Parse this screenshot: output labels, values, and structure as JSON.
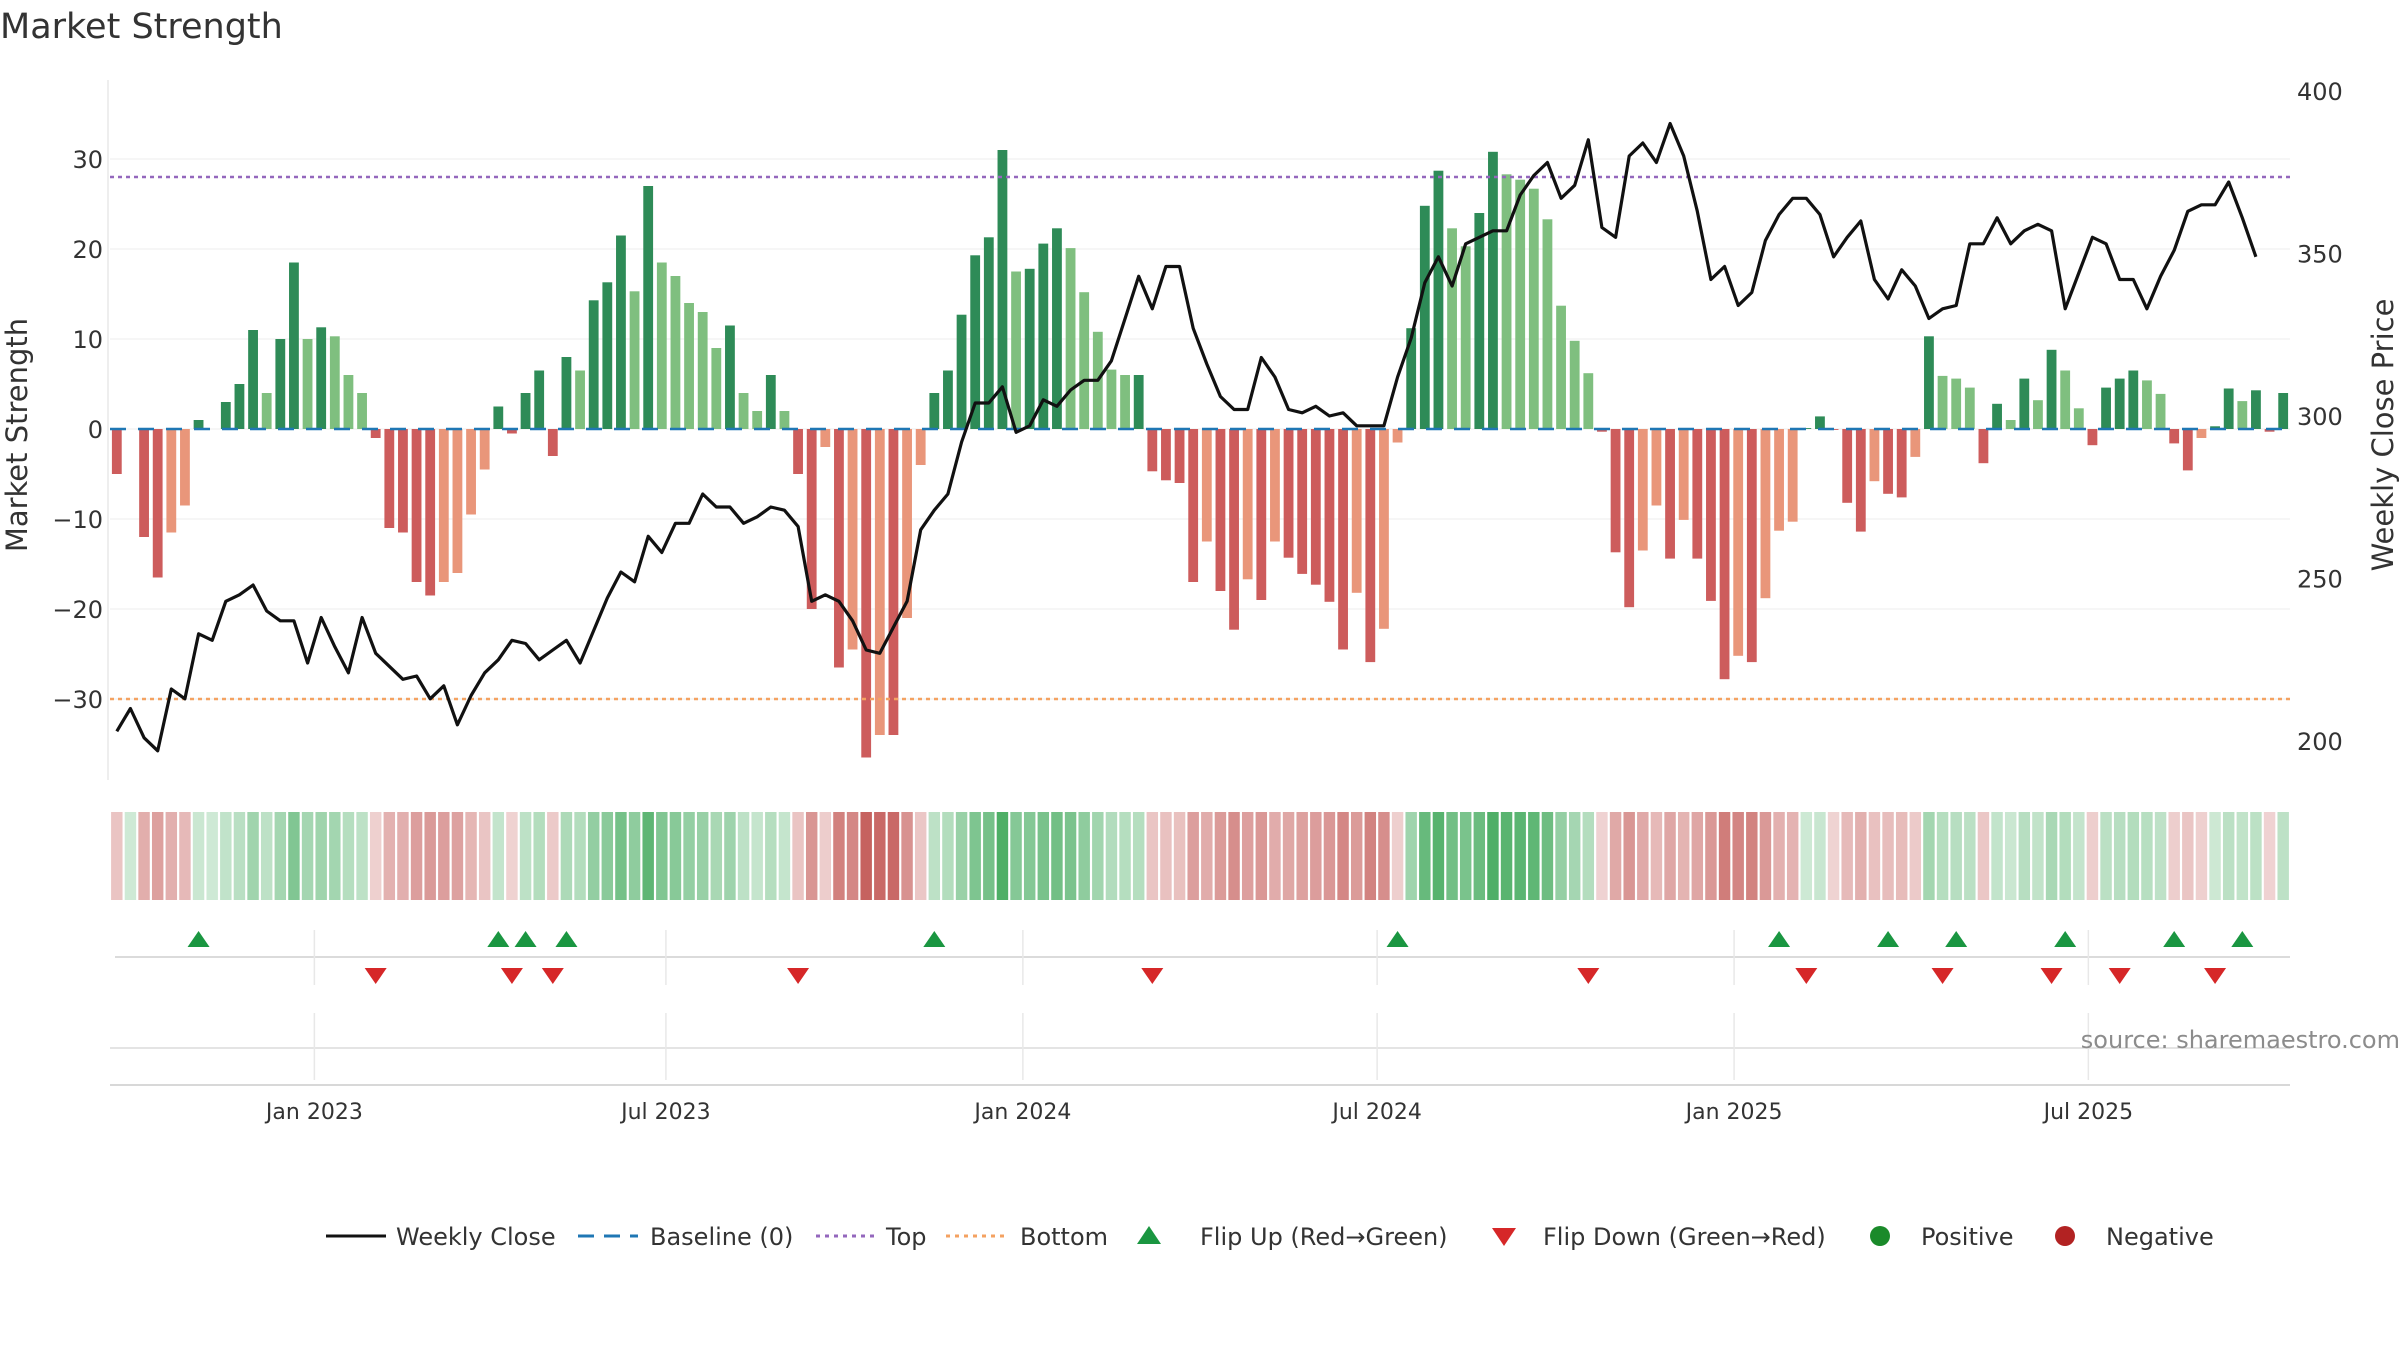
{
  "chart_data": {
    "type": "bar",
    "title": "Market Strength",
    "ylabel": "Market Strength",
    "y2label": "Weekly Close Price",
    "ylim": [
      -39,
      39
    ],
    "y2lim": [
      188,
      404
    ],
    "yticks": [
      30,
      20,
      10,
      0,
      -10,
      -20,
      -30
    ],
    "yticklabels": [
      "30",
      "20",
      "10",
      "0",
      "−10",
      "−20",
      "−30"
    ],
    "y2ticks": [
      400,
      350,
      300,
      250,
      200
    ],
    "y2ticklabels": [
      "400",
      "350",
      "300",
      "250",
      "200"
    ],
    "thresholds": {
      "top": 28,
      "bottom": -30,
      "baseline": 0
    },
    "xdates": [
      "Jan 2023",
      "Jul 2023",
      "Jan 2024",
      "Jul 2024",
      "Jan 2025",
      "Jul 2025"
    ],
    "xdate_index": [
      14.5,
      40.3,
      66.5,
      92.5,
      118.7,
      144.7
    ],
    "strength": [
      -5,
      0,
      -12,
      -16.5,
      -11.5,
      -8.5,
      1,
      0,
      3,
      5,
      11,
      4,
      10,
      18.5,
      10,
      11.3,
      10.3,
      6,
      4,
      -1,
      -11,
      -11.5,
      -17,
      -18.5,
      -17,
      -16,
      -9.5,
      -4.5,
      2.5,
      -0.5,
      4,
      6.5,
      -3,
      8,
      6.5,
      14.3,
      16.3,
      21.5,
      15.3,
      27,
      18.5,
      17,
      14,
      13,
      9,
      11.5,
      4,
      2,
      6,
      2,
      -5,
      -20,
      -2,
      -26.5,
      -24.5,
      -36.5,
      -34,
      -34,
      -21,
      -4,
      4,
      6.5,
      12.7,
      19.3,
      21.3,
      31,
      17.5,
      17.8,
      20.6,
      22.3,
      20.1,
      15.2,
      10.8,
      6.6,
      6,
      6,
      -4.7,
      -5.7,
      -6,
      -17,
      -12.5,
      -18,
      -22.3,
      -16.7,
      -19,
      -12.5,
      -14.3,
      -16.1,
      -17.3,
      -19.2,
      -24.5,
      -18.2,
      -25.9,
      -22.2,
      -1.5,
      11.2,
      24.8,
      28.7,
      22.3,
      20.3,
      24,
      30.8,
      28.3,
      27.7,
      26.7,
      23.3,
      13.7,
      9.8,
      6.2,
      -0.3,
      -13.7,
      -19.8,
      -13.5,
      -8.5,
      -14.4,
      -10.1,
      -14.4,
      -19.1,
      -27.8,
      -25.2,
      -25.9,
      -18.8,
      -11.3,
      -10.3,
      0.1,
      1.4,
      -0.1,
      -8.2,
      -11.4,
      -5.8,
      -7.2,
      -7.6,
      -3.1,
      10.3,
      5.9,
      5.6,
      4.6,
      -3.8,
      2.8,
      1,
      5.6,
      3.2,
      8.8,
      6.5,
      2.3,
      -1.8,
      4.6,
      5.6,
      6.5,
      5.4,
      3.9,
      -1.6,
      -4.6,
      -1,
      0.3,
      4.5,
      3.1,
      4.3,
      -0.3,
      4
    ],
    "weekly_close": [
      203,
      210,
      201,
      197,
      216,
      213,
      233,
      231,
      243,
      245,
      248,
      240,
      237,
      237,
      224,
      238,
      229,
      221,
      238,
      227,
      223,
      219,
      220,
      213,
      217,
      205,
      214,
      221,
      225,
      231,
      230,
      225,
      228,
      231,
      224,
      234,
      244,
      252,
      249,
      263,
      258,
      267,
      267,
      276,
      272,
      272,
      267,
      269,
      272,
      271,
      266,
      243,
      245,
      243,
      237,
      228,
      227,
      235,
      243,
      265,
      271,
      276,
      292,
      304,
      304,
      309,
      295,
      297,
      305,
      303,
      308,
      311,
      311,
      317,
      330,
      343,
      333,
      346,
      346,
      327,
      316,
      306,
      302,
      302,
      318,
      312,
      302,
      301,
      303,
      300,
      301,
      297,
      297,
      297,
      312,
      324,
      341,
      349,
      340,
      353,
      355,
      357,
      357,
      368,
      374,
      378,
      367,
      371,
      385,
      358,
      355,
      380,
      384,
      378,
      390,
      380,
      363,
      342,
      346,
      334,
      338,
      354,
      362,
      367,
      367,
      362,
      349,
      355,
      360,
      342,
      336,
      345,
      340,
      330,
      333,
      334,
      353,
      353,
      361,
      353,
      357,
      359,
      357,
      333,
      344,
      355,
      353,
      342,
      342,
      333,
      343,
      351,
      363,
      365,
      365,
      372,
      361,
      349
    ],
    "flip_up_index": [
      6,
      28,
      30,
      33,
      60,
      94,
      122,
      130,
      135,
      143,
      151,
      156
    ],
    "flip_down_index": [
      19,
      29,
      32,
      50,
      76,
      108,
      124,
      134,
      142,
      147,
      154
    ],
    "legend": {
      "weekly_close": "Weekly Close",
      "baseline": "Baseline (0)",
      "top": "Top",
      "bottom": "Bottom",
      "flip_up": "Flip Up (Red→Green)",
      "flip_down": "Flip Down (Green→Red)",
      "positive": "Positive",
      "negative": "Negative"
    },
    "source": "source: sharemaestro.com",
    "colors": {
      "pos_dark": "#2e8b57",
      "pos_light": "#7fbf7f",
      "neg_dark": "#cd5c5c",
      "neg_light": "#e9967a",
      "price": "#111111",
      "baseline": "#1f77b4",
      "top": "#9467bd",
      "bottom": "#f4a261",
      "flip_up": "#1a9641",
      "flip_down": "#d62728",
      "positive_dot": "#1a8a2a",
      "negative_dot": "#b22222"
    }
  }
}
